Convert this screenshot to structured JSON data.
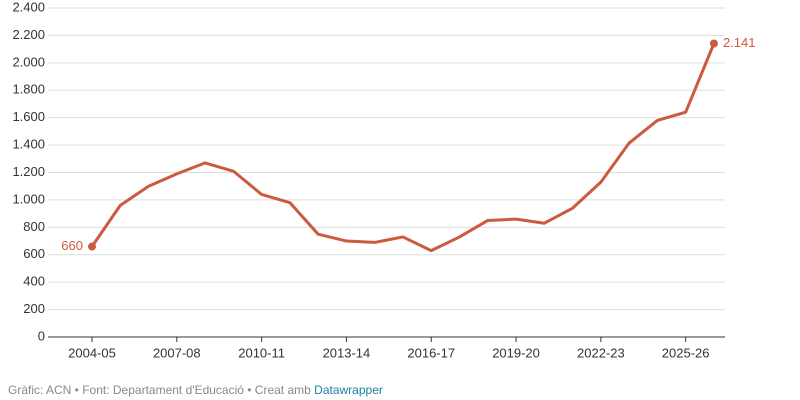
{
  "chart_data": {
    "type": "line",
    "categories": [
      "2004-05",
      null,
      null,
      "2007-08",
      null,
      null,
      "2010-11",
      null,
      null,
      "2013-14",
      null,
      null,
      "2016-17",
      null,
      null,
      "2019-20",
      null,
      null,
      "2022-23",
      null,
      null,
      "2025-26",
      null
    ],
    "series": [
      {
        "name": null,
        "color": "#cc5a3f",
        "values": [
          660,
          960,
          1100,
          1190,
          1270,
          1210,
          1040,
          980,
          750,
          700,
          690,
          730,
          630,
          730,
          850,
          860,
          830,
          940,
          1130,
          1415,
          1580,
          1640,
          2141
        ],
        "value_labels": [
          "660",
          null,
          null,
          null,
          null,
          null,
          null,
          null,
          null,
          null,
          null,
          null,
          null,
          null,
          null,
          null,
          null,
          null,
          null,
          null,
          null,
          null,
          "2.141"
        ]
      }
    ],
    "ylim": [
      0,
      2400
    ],
    "yticks": [
      0,
      200,
      400,
      600,
      800,
      {
        "value": 1000,
        "label": "1.000"
      },
      {
        "value": 1200,
        "label": "1.200"
      },
      {
        "value": 1400,
        "label": "1.400"
      },
      {
        "value": 1600,
        "label": "1.600"
      },
      {
        "value": 1800,
        "label": "1.800"
      },
      {
        "value": 2000,
        "label": "2.000"
      },
      {
        "value": 2200,
        "label": "2.200"
      },
      {
        "value": 2400,
        "label": "2.400"
      }
    ],
    "grid": true,
    "source": "Gràfic: ACN • Font: Departament d'Educació • Creat amb",
    "source_link": "Datawrapper"
  }
}
